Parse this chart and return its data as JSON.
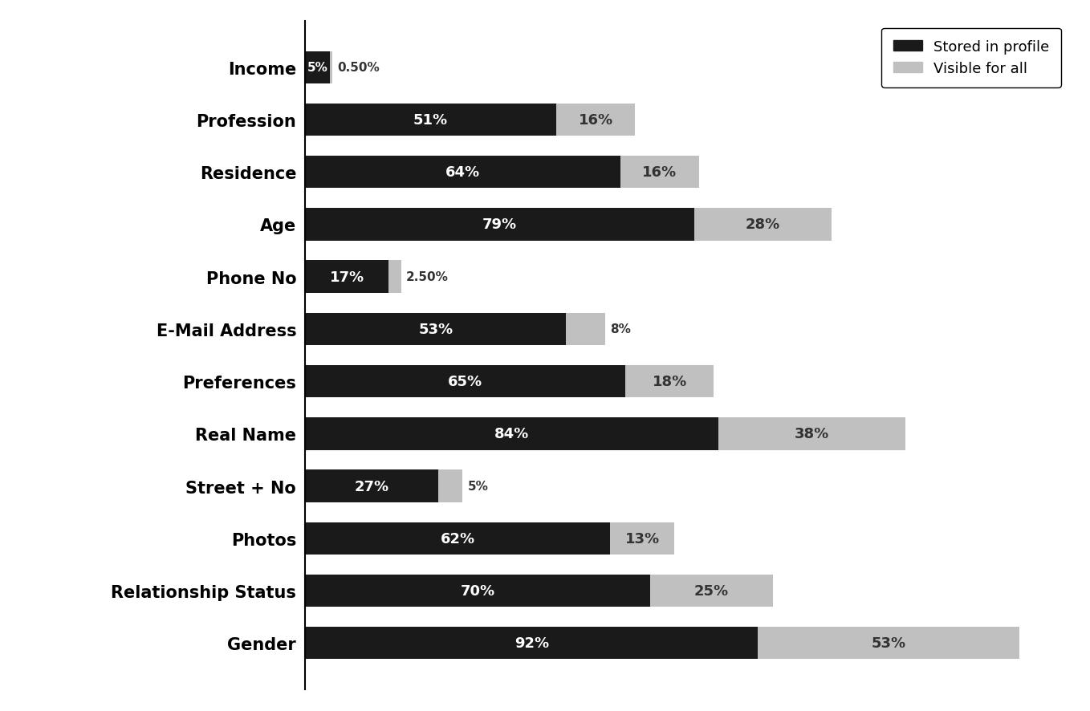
{
  "categories": [
    "Income",
    "Profession",
    "Residence",
    "Age",
    "Phone No",
    "E-Mail Address",
    "Preferences",
    "Real Name",
    "Street + No",
    "Photos",
    "Relationship Status",
    "Gender"
  ],
  "stored_in_profile": [
    5,
    51,
    64,
    79,
    17,
    53,
    65,
    84,
    27,
    62,
    70,
    92
  ],
  "visible_for_all": [
    0.5,
    16,
    16,
    28,
    2.5,
    8,
    18,
    38,
    5,
    13,
    25,
    53
  ],
  "stored_labels": [
    "5%",
    "51%",
    "64%",
    "79%",
    "17%",
    "53%",
    "65%",
    "84%",
    "27%",
    "62%",
    "70%",
    "92%"
  ],
  "visible_labels": [
    "0.50%",
    "16%",
    "16%",
    "28%",
    "2.50%",
    "8%",
    "18%",
    "38%",
    "5%",
    "13%",
    "25%",
    "53%"
  ],
  "color_stored": "#1a1a1a",
  "color_visible": "#c0c0c0",
  "background_color": "#ffffff",
  "legend_stored": "Stored in profile",
  "legend_visible": "Visible for all",
  "bar_height": 0.62,
  "xlim": [
    0,
    155
  ]
}
